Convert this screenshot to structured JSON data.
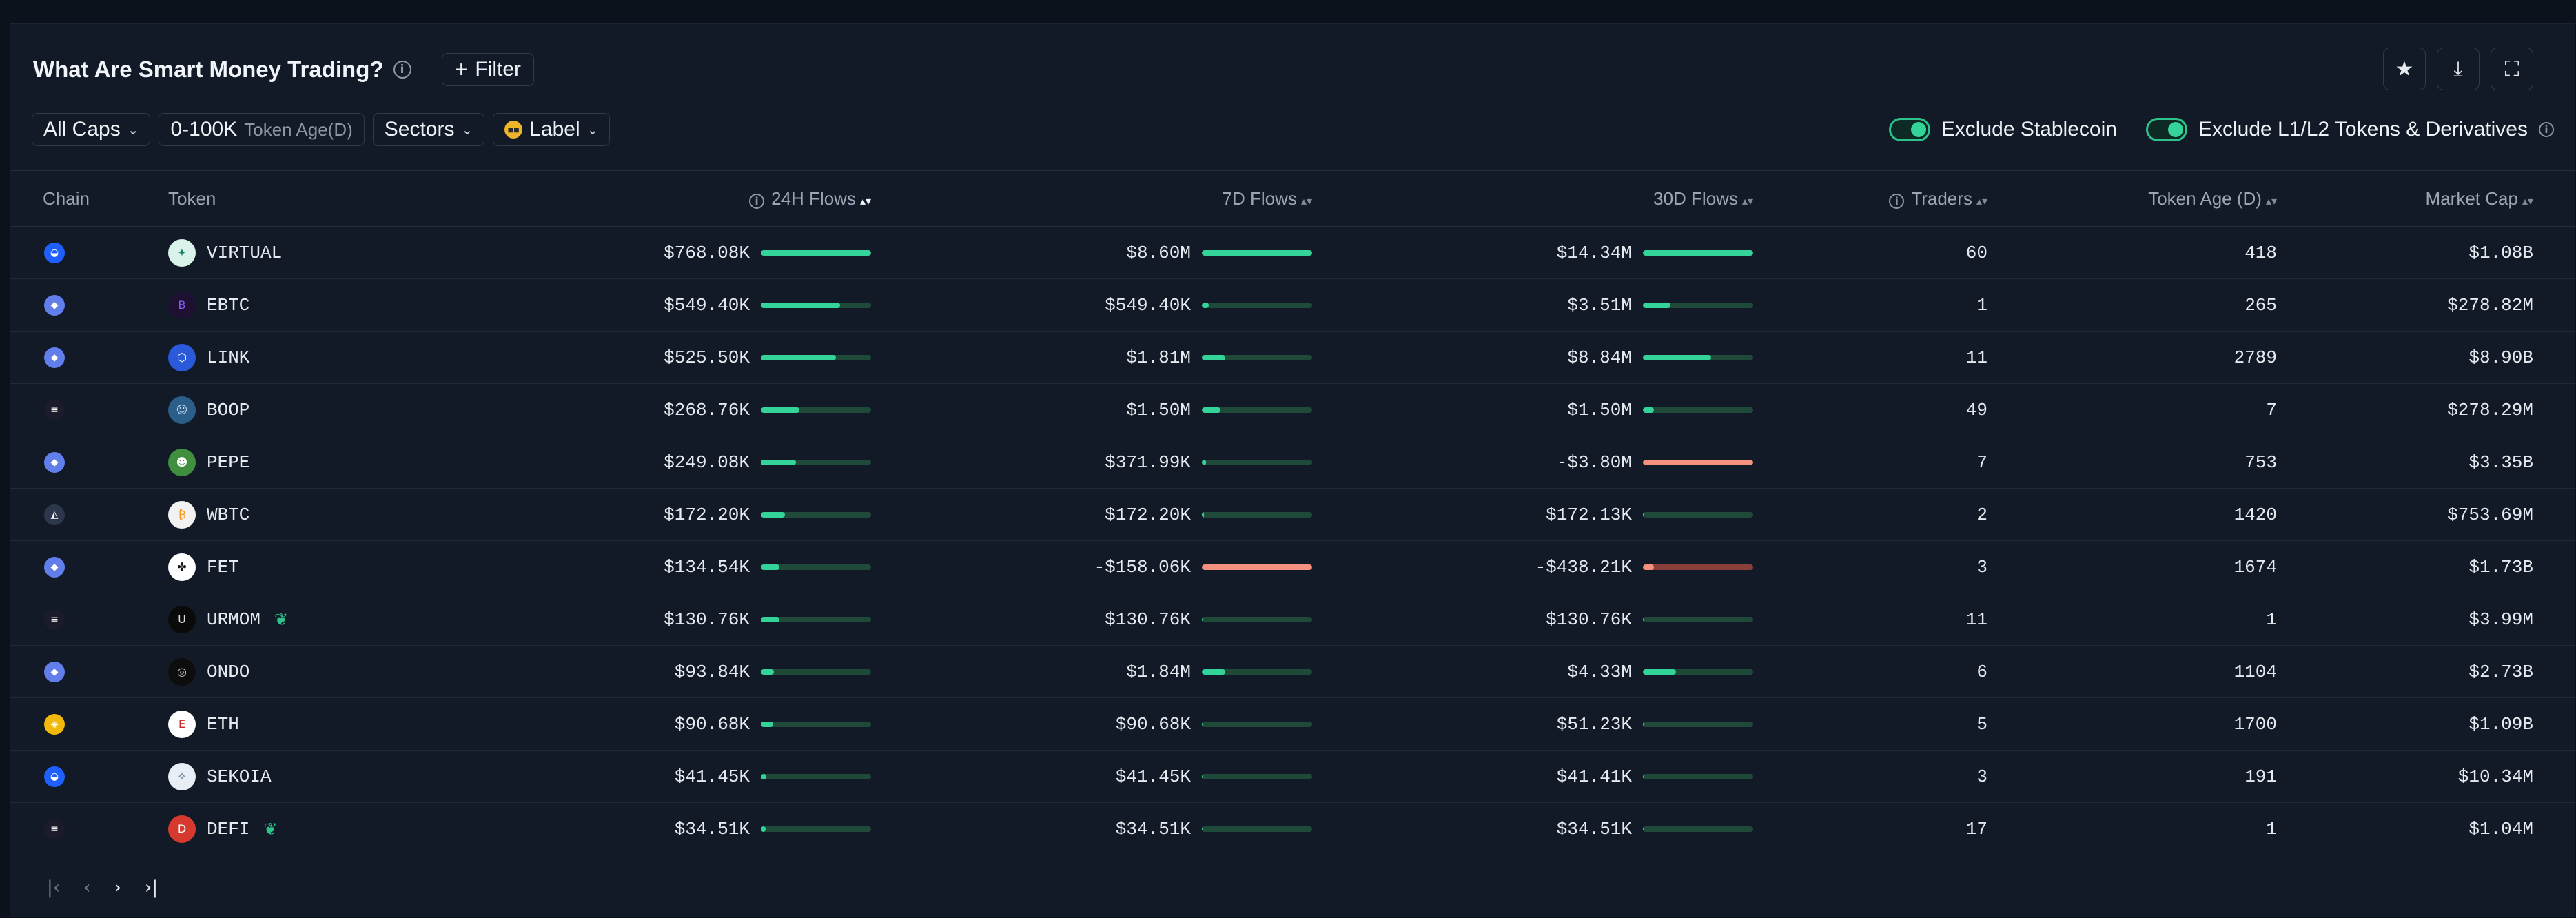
{
  "header": {
    "title": "What Are Smart Money Trading?",
    "filter_label": "Filter"
  },
  "actions": [
    {
      "name": "favorite-button",
      "icon": "star-icon",
      "glyph": "★"
    },
    {
      "name": "download-button",
      "icon": "download-icon",
      "glyph": "⤓"
    },
    {
      "name": "fullscreen-button",
      "icon": "expand-icon",
      "glyph": "⛶"
    }
  ],
  "controls": {
    "caps": "All Caps",
    "token_age_range": "0-100K",
    "token_age_label": "Token Age(D)",
    "sectors": "Sectors",
    "label": "Label"
  },
  "toggles": {
    "exclude_stablecoin": "Exclude Stablecoin",
    "exclude_l1l2": "Exclude L1/L2 Tokens & Derivatives",
    "accent": "#34d399"
  },
  "columns": {
    "chain": "Chain",
    "token": "Token",
    "flows_24h": "24H Flows",
    "flows_7d": "7D Flows",
    "flows_30d": "30D Flows",
    "traders": "Traders",
    "token_age": "Token Age (D)",
    "market_cap": "Market Cap"
  },
  "rows": [
    {
      "chain": "base",
      "token": "VIRTUAL",
      "tag": false,
      "f24": "$768.08K",
      "b24": 1.0,
      "c24": "pos",
      "f7": "$8.60M",
      "b7": 1.0,
      "c7": "pos",
      "f30": "$14.34M",
      "b30": 1.0,
      "c30": "pos",
      "traders": "60",
      "age": "418",
      "mcap": "$1.08B"
    },
    {
      "chain": "ethereum",
      "token": "EBTC",
      "tag": false,
      "f24": "$549.40K",
      "b24": 0.72,
      "c24": "pos",
      "f7": "$549.40K",
      "b7": 0.06,
      "c7": "pos",
      "f30": "$3.51M",
      "b30": 0.25,
      "c30": "pos",
      "traders": "1",
      "age": "265",
      "mcap": "$278.82M"
    },
    {
      "chain": "ethereum",
      "token": "LINK",
      "tag": false,
      "f24": "$525.50K",
      "b24": 0.68,
      "c24": "pos",
      "f7": "$1.81M",
      "b7": 0.21,
      "c7": "pos",
      "f30": "$8.84M",
      "b30": 0.62,
      "c30": "pos",
      "traders": "11",
      "age": "2789",
      "mcap": "$8.90B"
    },
    {
      "chain": "solana",
      "token": "BOOP",
      "tag": false,
      "f24": "$268.76K",
      "b24": 0.35,
      "c24": "pos",
      "f7": "$1.50M",
      "b7": 0.17,
      "c7": "pos",
      "f30": "$1.50M",
      "b30": 0.1,
      "c30": "pos",
      "traders": "49",
      "age": "7",
      "mcap": "$278.29M"
    },
    {
      "chain": "ethereum",
      "token": "PEPE",
      "tag": false,
      "f24": "$249.08K",
      "b24": 0.32,
      "c24": "pos",
      "f7": "$371.99K",
      "b7": 0.04,
      "c7": "pos",
      "f30": "-$3.80M",
      "b30": 1.0,
      "c30": "neg",
      "traders": "7",
      "age": "753",
      "mcap": "$3.35B"
    },
    {
      "chain": "arbitrum",
      "token": "WBTC",
      "tag": false,
      "f24": "$172.20K",
      "b24": 0.22,
      "c24": "pos",
      "f7": "$172.20K",
      "b7": 0.02,
      "c7": "pos",
      "f30": "$172.13K",
      "b30": 0.01,
      "c30": "pos",
      "traders": "2",
      "age": "1420",
      "mcap": "$753.69M"
    },
    {
      "chain": "ethereum",
      "token": "FET",
      "tag": false,
      "f24": "$134.54K",
      "b24": 0.17,
      "c24": "pos",
      "f7": "-$158.06K",
      "b7": 1.0,
      "c7": "neg",
      "f30": "-$438.21K",
      "b30": 0.1,
      "c30": "negfade",
      "traders": "3",
      "age": "1674",
      "mcap": "$1.73B"
    },
    {
      "chain": "solana",
      "token": "URMOM",
      "tag": true,
      "f24": "$130.76K",
      "b24": 0.17,
      "c24": "pos",
      "f7": "$130.76K",
      "b7": 0.015,
      "c7": "pos",
      "f30": "$130.76K",
      "b30": 0.01,
      "c30": "pos",
      "traders": "11",
      "age": "1",
      "mcap": "$3.99M"
    },
    {
      "chain": "ethereum",
      "token": "ONDO",
      "tag": false,
      "f24": "$93.84K",
      "b24": 0.12,
      "c24": "pos",
      "f7": "$1.84M",
      "b7": 0.21,
      "c7": "pos",
      "f30": "$4.33M",
      "b30": 0.3,
      "c30": "pos",
      "traders": "6",
      "age": "1104",
      "mcap": "$2.73B"
    },
    {
      "chain": "bnb",
      "token": "ETH",
      "tag": false,
      "f24": "$90.68K",
      "b24": 0.11,
      "c24": "pos",
      "f7": "$90.68K",
      "b7": 0.01,
      "c7": "pos",
      "f30": "$51.23K",
      "b30": 0.004,
      "c30": "pos",
      "traders": "5",
      "age": "1700",
      "mcap": "$1.09B"
    },
    {
      "chain": "base",
      "token": "SEKOIA",
      "tag": false,
      "f24": "$41.45K",
      "b24": 0.05,
      "c24": "pos",
      "f7": "$41.45K",
      "b7": 0.005,
      "c7": "pos",
      "f30": "$41.41K",
      "b30": 0.003,
      "c30": "pos",
      "traders": "3",
      "age": "191",
      "mcap": "$10.34M"
    },
    {
      "chain": "solana",
      "token": "DEFI",
      "tag": true,
      "f24": "$34.51K",
      "b24": 0.045,
      "c24": "pos",
      "f7": "$34.51K",
      "b7": 0.004,
      "c7": "pos",
      "f30": "$34.51K",
      "b30": 0.002,
      "c30": "pos",
      "traders": "17",
      "age": "1",
      "mcap": "$1.04M"
    }
  ],
  "colors": {
    "positive": "#34d399",
    "negative": "#f4917e",
    "negative_fade": "#8a3f3a",
    "track": "#1f4a3a",
    "track_neg": "#4a2a2a"
  },
  "pager": [
    "first-page",
    "prev-page",
    "next-page",
    "last-page"
  ]
}
